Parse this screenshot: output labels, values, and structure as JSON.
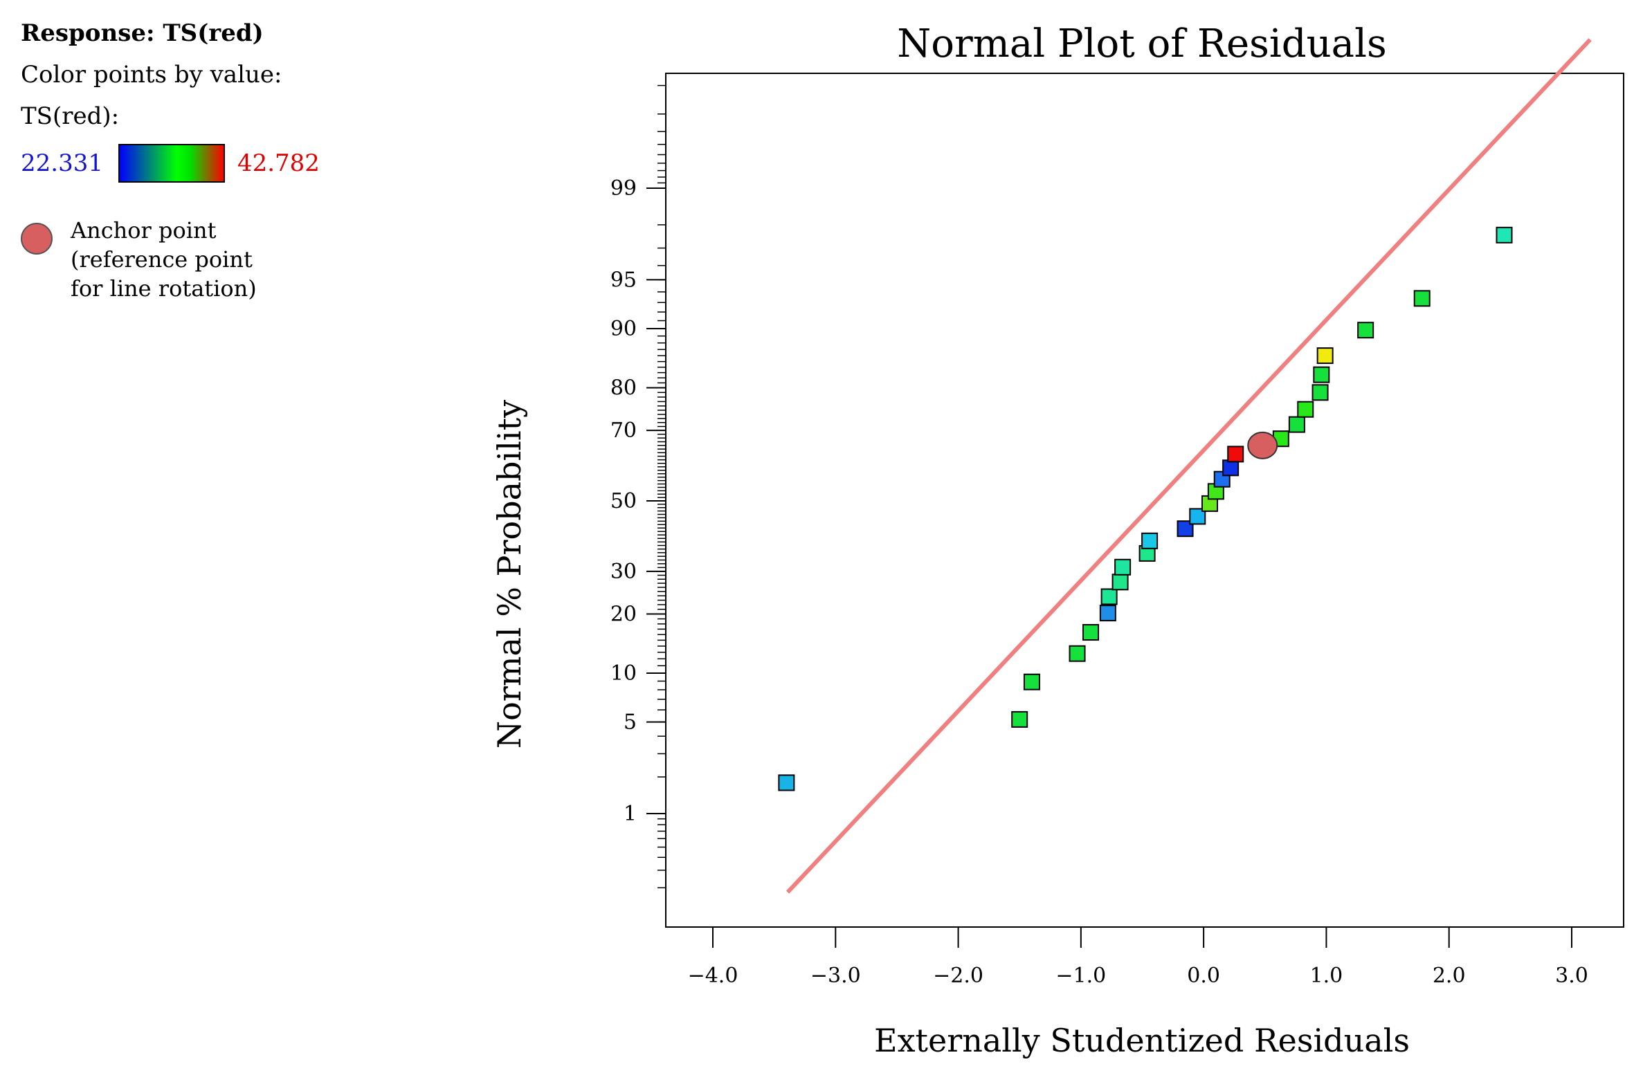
{
  "legend": {
    "response_label": "Response: TS(red)",
    "color_by_label": "Color points by value:",
    "variable_label": "TS(red):",
    "min_value": "22.331",
    "max_value": "42.782",
    "anchor_lines": [
      "Anchor point",
      "(reference point",
      "for line rotation)"
    ]
  },
  "colors": {
    "line": "#f08080",
    "anchor": "#d85f5f",
    "gradient": [
      "#0000ff",
      "#00ff00",
      "#ff0000"
    ]
  },
  "chart_data": {
    "type": "scatter",
    "title": "Normal Plot of Residuals",
    "xlabel": "Externally Studentized Residuals",
    "ylabel": "Normal % Probability",
    "xlim": [
      -4.4,
      3.15
    ],
    "y_scale": "normal-probability",
    "x_ticks": [
      -4.0,
      -3.0,
      -2.0,
      -1.0,
      0.0,
      1.0,
      2.0,
      3.0
    ],
    "x_tick_labels": [
      "−4.0",
      "−3.0",
      "−2.0",
      "−1.0",
      "0.0",
      "1.0",
      "2.0",
      "3.0"
    ],
    "y_ticks": [
      1,
      5,
      10,
      20,
      30,
      50,
      70,
      80,
      90,
      95,
      99
    ],
    "y_tick_labels": [
      "1",
      "5",
      "10",
      "20",
      "30",
      "50",
      "70",
      "80",
      "90",
      "95",
      "99"
    ],
    "reference_line": {
      "x1": -3.39,
      "y1": 0.18,
      "x2": 3.15,
      "y2": 99.97
    },
    "anchor_point": {
      "x": 0.48,
      "y": 66.0
    },
    "points": [
      {
        "x": -3.4,
        "y": 1.8,
        "color": "#19b4e6"
      },
      {
        "x": -1.5,
        "y": 5.2,
        "color": "#16e03c"
      },
      {
        "x": -1.4,
        "y": 8.9,
        "color": "#16e03c"
      },
      {
        "x": -1.03,
        "y": 12.8,
        "color": "#16e03c"
      },
      {
        "x": -0.92,
        "y": 16.4,
        "color": "#16e03c"
      },
      {
        "x": -0.78,
        "y": 20.2,
        "color": "#1e8ee6"
      },
      {
        "x": -0.77,
        "y": 23.8,
        "color": "#1ae696"
      },
      {
        "x": -0.68,
        "y": 27.3,
        "color": "#1ee68a"
      },
      {
        "x": -0.66,
        "y": 31.1,
        "color": "#1ce6a0"
      },
      {
        "x": -0.46,
        "y": 34.8,
        "color": "#1ee68a"
      },
      {
        "x": -0.44,
        "y": 38.3,
        "color": "#19c8e6"
      },
      {
        "x": -0.15,
        "y": 41.8,
        "color": "#1040e6"
      },
      {
        "x": -0.05,
        "y": 45.4,
        "color": "#18b4f0"
      },
      {
        "x": 0.05,
        "y": 49.2,
        "color": "#66e81a"
      },
      {
        "x": 0.1,
        "y": 52.8,
        "color": "#40e81a"
      },
      {
        "x": 0.15,
        "y": 56.4,
        "color": "#1e6ef0"
      },
      {
        "x": 0.22,
        "y": 59.7,
        "color": "#1030e6"
      },
      {
        "x": 0.26,
        "y": 63.6,
        "color": "#f00a0a"
      },
      {
        "x": 0.63,
        "y": 67.8,
        "color": "#28e81a"
      },
      {
        "x": 0.76,
        "y": 71.5,
        "color": "#16e03c"
      },
      {
        "x": 0.83,
        "y": 75.2,
        "color": "#28e81a"
      },
      {
        "x": 0.95,
        "y": 79.0,
        "color": "#16e03c"
      },
      {
        "x": 0.96,
        "y": 82.6,
        "color": "#16e03c"
      },
      {
        "x": 0.99,
        "y": 86.0,
        "color": "#f0ea10"
      },
      {
        "x": 1.32,
        "y": 89.8,
        "color": "#16e03c"
      },
      {
        "x": 1.78,
        "y": 93.4,
        "color": "#16e03c"
      },
      {
        "x": 2.45,
        "y": 97.6,
        "color": "#1ee6b4"
      }
    ]
  }
}
